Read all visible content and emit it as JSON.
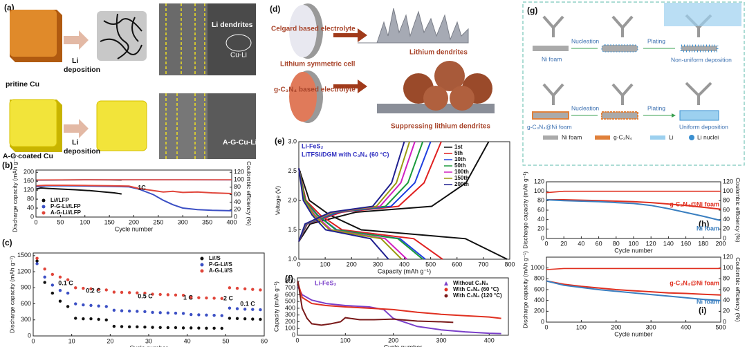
{
  "panels": {
    "a": {
      "label": "(a)",
      "top_caption": "pritine Cu",
      "bottom_caption": "A-G coated Cu",
      "arrow_top": [
        "Li",
        "deposition"
      ],
      "arrow_bottom": [
        "Li",
        "deposition"
      ],
      "sem_top": [
        "Li dendrites",
        "Cu-Li"
      ],
      "sem_bottom": "A-G-Cu-Li"
    },
    "d": {
      "label": "(d)",
      "texts": [
        "Celgard based electrolyte",
        "Lithium symmetric cell",
        "g-C₃N₄ based electrolyte",
        "Lithium dendrites",
        "Suppressing lithium dendrites"
      ]
    },
    "g": {
      "label": "(g)",
      "row1": [
        "Nucleation",
        "Plating",
        "Ni foam",
        "Non-uniform deposition"
      ],
      "row2": [
        "Nucleation",
        "Plating",
        "g-C₃N₄@Ni foam",
        "Uniform deposition"
      ],
      "legend": [
        "Ni foam",
        "g-C₃N₄",
        "Li",
        "Li nuclei"
      ]
    }
  },
  "chart_data": [
    {
      "type": "line",
      "label": "(b)",
      "xlabel": "Cycle number",
      "ylabel": "Discharge capacity (mAh g⁻¹)",
      "y2label": "Coulombic efficiency (%)",
      "xlim": [
        0,
        400
      ],
      "xticks": [
        0,
        50,
        100,
        150,
        200,
        250,
        300,
        350,
        400
      ],
      "ylim": [
        0,
        210
      ],
      "yticks": [
        0,
        40,
        80,
        120,
        160,
        200
      ],
      "y2lim": [
        0,
        126
      ],
      "y2ticks": [
        0,
        20,
        40,
        60,
        80,
        100,
        120
      ],
      "legend": "lower left",
      "annotations": [
        "1C"
      ],
      "series": [
        {
          "name": "Li//LFP",
          "color": "#111111",
          "marker": "circle",
          "x": [
            1,
            10,
            25,
            50,
            80,
            110,
            140,
            160,
            175
          ],
          "values": [
            125,
            130,
            128,
            125,
            122,
            118,
            112,
            108,
            103
          ]
        },
        {
          "name": "P-G-Li//LFP",
          "color": "#3b4fc4",
          "marker": "circle",
          "x": [
            1,
            20,
            60,
            100,
            150,
            190,
            210,
            240,
            260,
            280,
            300,
            330,
            360,
            400
          ],
          "values": [
            135,
            140,
            140,
            139,
            137,
            135,
            125,
            100,
            75,
            55,
            40,
            33,
            30,
            28
          ]
        },
        {
          "name": "A-G-Li//LFP",
          "color": "#e0453a",
          "marker": "circle",
          "x": [
            1,
            20,
            60,
            100,
            150,
            190,
            210,
            240,
            260,
            280,
            300,
            330,
            360,
            400
          ],
          "values": [
            140,
            142,
            142,
            141,
            140,
            138,
            128,
            118,
            112,
            115,
            110,
            112,
            108,
            105
          ]
        },
        {
          "color": "#111111",
          "axis": "y2",
          "x": [
            1,
            50,
            100,
            150,
            175
          ],
          "values": [
            99,
            99.5,
            99.6,
            99.5,
            99
          ]
        },
        {
          "color": "#3b4fc4",
          "axis": "y2",
          "x": [
            1,
            100,
            200,
            300,
            400
          ],
          "values": [
            99,
            99.6,
            99.7,
            99.6,
            99.5
          ]
        },
        {
          "color": "#e0453a",
          "axis": "y2",
          "x": [
            1,
            100,
            200,
            300,
            400
          ],
          "values": [
            99.5,
            99.8,
            99.8,
            99.8,
            99.8
          ]
        }
      ]
    },
    {
      "type": "scatter",
      "label": "(c)",
      "xlabel": "Cycle number",
      "ylabel": "Discharge capacity (mAh g⁻¹)",
      "xlim": [
        0,
        60
      ],
      "xticks": [
        0,
        10,
        20,
        30,
        40,
        50,
        60
      ],
      "ylim": [
        0,
        1550
      ],
      "yticks": [
        0,
        300,
        600,
        900,
        1200,
        1500
      ],
      "legend": "upper right",
      "annotations": [
        "0.1 C",
        "0.2 C",
        "0.5 C",
        "1 C",
        "2 C",
        "0.1 C"
      ],
      "x": [
        1,
        3,
        5,
        7,
        9,
        11,
        13,
        15,
        17,
        19,
        21,
        23,
        25,
        27,
        29,
        31,
        33,
        35,
        37,
        39,
        41,
        43,
        45,
        47,
        49,
        51,
        53,
        55,
        57,
        59
      ],
      "series": [
        {
          "name": "Li//S",
          "color": "#111111",
          "marker": "circle",
          "values": [
            1400,
            1000,
            800,
            650,
            550,
            330,
            320,
            320,
            310,
            300,
            180,
            175,
            170,
            170,
            165,
            160,
            158,
            155,
            155,
            150,
            150,
            148,
            145,
            145,
            142,
            330,
            325,
            320,
            315,
            310
          ]
        },
        {
          "name": "P-G-Li//S",
          "color": "#3b4fc4",
          "marker": "circle",
          "values": [
            1350,
            1100,
            950,
            850,
            800,
            600,
            580,
            570,
            560,
            550,
            480,
            470,
            465,
            460,
            455,
            440,
            435,
            430,
            425,
            420,
            400,
            395,
            390,
            385,
            380,
            520,
            510,
            500,
            495,
            490
          ]
        },
        {
          "name": "A-G-Li//S",
          "color": "#e0453a",
          "marker": "circle",
          "values": [
            1450,
            1250,
            1150,
            1100,
            1050,
            900,
            890,
            880,
            870,
            860,
            820,
            815,
            810,
            805,
            800,
            780,
            775,
            770,
            765,
            760,
            720,
            715,
            710,
            705,
            700,
            900,
            890,
            880,
            870,
            860
          ]
        }
      ]
    },
    {
      "type": "line",
      "label": "(e)",
      "xlabel": "Capacity (mAh g⁻¹)",
      "ylabel": "Voltage (V)",
      "xlim": [
        0,
        800
      ],
      "xticks": [
        0,
        100,
        200,
        300,
        400,
        500,
        600,
        700,
        800
      ],
      "ylim": [
        1,
        3
      ],
      "yticks": [
        {
          "value": 1,
          "label": "1.0"
        },
        1.5,
        {
          "value": 2,
          "label": "2.0"
        },
        2.5,
        {
          "value": 3,
          "label": "3.0"
        }
      ],
      "legend": "upper right",
      "annotations": [
        "Li-FeS₂",
        "LiTFSI/DGM with C₃N₄ (60 °C)"
      ],
      "series": [
        {
          "name": "1st",
          "color": "#111111",
          "x": [
            0,
            40,
            118,
            237,
            632,
            790,
            null,
            0,
            43,
            216,
            504,
            634,
            720
          ],
          "values": [
            2.55,
            2.0,
            1.75,
            1.5,
            1.35,
            1.0,
            null,
            1.3,
            1.6,
            1.8,
            1.9,
            2.3,
            3.0
          ]
        },
        {
          "name": "5th",
          "color": "#e02020",
          "x": [
            0,
            27,
            82,
            164,
            436,
            545,
            null,
            0,
            32,
            162,
            378,
            475,
            540
          ],
          "values": [
            2.55,
            2.0,
            1.75,
            1.5,
            1.35,
            1.0,
            null,
            1.3,
            1.6,
            1.8,
            1.9,
            2.3,
            3.0
          ]
        },
        {
          "name": "10th",
          "color": "#2040e0",
          "x": [
            0,
            24,
            72,
            144,
            384,
            480,
            null,
            0,
            30,
            150,
            350,
            440,
            500
          ],
          "values": [
            2.55,
            2.0,
            1.75,
            1.5,
            1.35,
            1.0,
            null,
            1.3,
            1.6,
            1.8,
            1.9,
            2.3,
            3.0
          ]
        },
        {
          "name": "50th",
          "color": "#1a9a3a",
          "x": [
            0,
            24,
            70,
            141,
            376,
            470,
            null,
            0,
            28,
            141,
            329,
            414,
            470
          ],
          "values": [
            2.55,
            2.0,
            1.75,
            1.5,
            1.35,
            1.0,
            null,
            1.3,
            1.6,
            1.8,
            1.9,
            2.3,
            3.0
          ]
        },
        {
          "name": "100th",
          "color": "#d020c0",
          "x": [
            0,
            20,
            62,
            123,
            328,
            410,
            null,
            0,
            26,
            132,
            308,
            387,
            440
          ],
          "values": [
            2.55,
            2.0,
            1.75,
            1.5,
            1.35,
            1.0,
            null,
            1.3,
            1.6,
            1.8,
            1.9,
            2.3,
            3.0
          ]
        },
        {
          "name": "150th",
          "color": "#9a9a10",
          "x": [
            0,
            20,
            58,
            117,
            312,
            390,
            null,
            0,
            25,
            126,
            294,
            370,
            420
          ],
          "values": [
            2.55,
            2.0,
            1.75,
            1.5,
            1.35,
            1.0,
            null,
            1.3,
            1.6,
            1.8,
            1.9,
            2.3,
            3.0
          ]
        },
        {
          "name": "200th",
          "color": "#202090",
          "x": [
            0,
            17,
            51,
            102,
            272,
            340,
            null,
            0,
            24,
            120,
            280,
            352,
            400
          ],
          "values": [
            2.55,
            2.0,
            1.75,
            1.5,
            1.35,
            1.0,
            null,
            1.3,
            1.6,
            1.8,
            1.9,
            2.3,
            3.0
          ]
        }
      ]
    },
    {
      "type": "line",
      "label": "(f)",
      "xlabel": "Cycle number",
      "ylabel": "Capacity (mAh g⁻¹)",
      "xlim": [
        0,
        440
      ],
      "xticks": [
        0,
        100,
        200,
        300,
        400
      ],
      "ylim": [
        0,
        850
      ],
      "yticks": [
        0,
        100,
        200,
        300,
        400,
        500,
        600,
        700,
        800
      ],
      "legend": "upper right",
      "annotations": [
        "Li-FeS₂"
      ],
      "series": [
        {
          "name": "Without C₃N₄",
          "color": "#7a3fc9",
          "marker": "triangle",
          "x": [
            1,
            10,
            30,
            60,
            100,
            150,
            180,
            200,
            250,
            300,
            350,
            400,
            425
          ],
          "values": [
            720,
            600,
            520,
            470,
            440,
            420,
            380,
            250,
            130,
            80,
            50,
            30,
            25
          ]
        },
        {
          "name": "With C₃N₄ (60 °C)",
          "color": "#e03020",
          "marker": "circle",
          "x": [
            1,
            10,
            30,
            60,
            100,
            150,
            200,
            250,
            300,
            350,
            400,
            425
          ],
          "values": [
            780,
            560,
            470,
            440,
            420,
            400,
            380,
            340,
            310,
            290,
            270,
            250
          ]
        },
        {
          "name": "With C₃N₄ (120 °C)",
          "color": "#7a1a1a",
          "marker": "circle",
          "x": [
            1,
            10,
            20,
            30,
            50,
            70,
            90,
            100,
            130,
            160,
            200,
            250,
            300,
            325
          ],
          "values": [
            800,
            400,
            250,
            170,
            150,
            170,
            200,
            260,
            230,
            230,
            240,
            210,
            200,
            190
          ]
        }
      ]
    },
    {
      "type": "line",
      "label": "(h)",
      "xlabel": "Cycle number",
      "ylabel": "Discharge capacity (mAh g⁻¹)",
      "y2label": "Coulombic efficiency (%)",
      "xlim": [
        0,
        200
      ],
      "xticks": [
        0,
        20,
        40,
        60,
        80,
        100,
        120,
        140,
        160,
        180,
        200
      ],
      "ylim": [
        0,
        120
      ],
      "yticks": [
        0,
        20,
        40,
        60,
        80,
        100,
        120
      ],
      "y2lim": [
        0,
        120
      ],
      "y2ticks": [
        0,
        20,
        40,
        60,
        80,
        100,
        120
      ],
      "annotations": [
        "g-C₃N₄@Ni foam",
        "Ni foam"
      ],
      "x": [
        0,
        20,
        40,
        60,
        80,
        100,
        120,
        140,
        160,
        180,
        200
      ],
      "series": [
        {
          "color": "#e03020",
          "values": [
            82,
            82,
            81,
            80,
            79,
            78,
            76,
            73,
            70,
            66,
            62
          ]
        },
        {
          "color": "#3a7fc0",
          "values": [
            82,
            80,
            79,
            78,
            76,
            74,
            70,
            63,
            55,
            47,
            38
          ]
        },
        {
          "color": "#e03020",
          "axis": "y2",
          "values": [
            97,
            100,
            100,
            100,
            100,
            100,
            100,
            100,
            100,
            100,
            100
          ]
        }
      ]
    },
    {
      "type": "line",
      "label": "(i)",
      "xlabel": "Cycle number",
      "ylabel": "Discharge capacity (mAh g⁻¹)",
      "y2label": "Coulombic efficiency (%)",
      "xlim": [
        0,
        500
      ],
      "xticks": [
        0,
        100,
        200,
        300,
        400,
        500
      ],
      "ylim": [
        0,
        1200
      ],
      "yticks": [
        0,
        200,
        400,
        600,
        800,
        1000
      ],
      "y2lim": [
        0,
        120
      ],
      "y2ticks": [
        0,
        20,
        40,
        60,
        80,
        100,
        120
      ],
      "annotations": [
        "g-C₃N₄@Ni foam",
        "Ni foam"
      ],
      "x": [
        0,
        50,
        100,
        150,
        200,
        250,
        300,
        350,
        400,
        450,
        500
      ],
      "series": [
        {
          "color": "#e03020",
          "values": [
            760,
            700,
            660,
            630,
            600,
            580,
            560,
            540,
            530,
            515,
            500
          ]
        },
        {
          "color": "#3a7fc0",
          "values": [
            760,
            680,
            640,
            600,
            570,
            540,
            510,
            480,
            450,
            420,
            400
          ]
        },
        {
          "color": "#e03020",
          "axis": "y2",
          "values": [
            97,
            99,
            99,
            99,
            99,
            99,
            99,
            99,
            99,
            99,
            99
          ]
        }
      ]
    }
  ]
}
